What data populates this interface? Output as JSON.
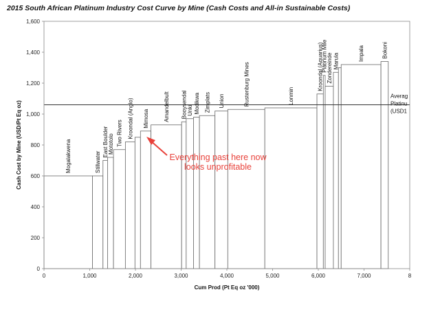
{
  "chart_data": {
    "type": "step",
    "title": "2015 South African Platinum Industry Cost Curve by Mine (Cash Costs and All-in Sustainable Costs)",
    "xlabel": "Cum Prod (Pt Eq oz '000)",
    "ylabel": "Cash Cost by Mine (USD/Pt Eq oz)",
    "xlim": [
      0,
      8000
    ],
    "ylim": [
      0,
      1600
    ],
    "x_ticks": [
      "0",
      "1,000",
      "2,000",
      "3,000",
      "4,000",
      "5,000",
      "6,000",
      "7,000",
      "8"
    ],
    "y_ticks": [
      "0",
      "200",
      "400",
      "600",
      "800",
      "1,000",
      "1,200",
      "1,400",
      "1,600"
    ],
    "grid": false,
    "bars": [
      {
        "label": "Mogalakwena",
        "x0": 0,
        "x1": 1060,
        "value": 600
      },
      {
        "label": "Stillwater",
        "x0": 1060,
        "x1": 1290,
        "value": 600
      },
      {
        "label": "East Boulder",
        "x0": 1290,
        "x1": 1390,
        "value": 700
      },
      {
        "label": "Mototolo",
        "x0": 1390,
        "x1": 1520,
        "value": 720
      },
      {
        "label": "Two Rivers",
        "x0": 1520,
        "x1": 1780,
        "value": 770
      },
      {
        "label": "Kroondal (Anglo)",
        "x0": 1780,
        "x1": 1990,
        "value": 820
      },
      {
        "label": "",
        "x0": 1990,
        "x1": 2110,
        "value": 850
      },
      {
        "label": "Mimosa",
        "x0": 2110,
        "x1": 2340,
        "value": 890
      },
      {
        "label": "Amandelbult",
        "x0": 2340,
        "x1": 3010,
        "value": 930
      },
      {
        "label": "Booysendal",
        "x0": 3010,
        "x1": 3110,
        "value": 950
      },
      {
        "label": "Unki",
        "x0": 3110,
        "x1": 3270,
        "value": 970
      },
      {
        "label": "Modikwa",
        "x0": 3270,
        "x1": 3400,
        "value": 980
      },
      {
        "label": "Zimplats",
        "x0": 3400,
        "x1": 3740,
        "value": 990
      },
      {
        "label": "Union",
        "x0": 3740,
        "x1": 4020,
        "value": 1020
      },
      {
        "label": "Rustenburg Mines",
        "x0": 4020,
        "x1": 4830,
        "value": 1030
      },
      {
        "label": "Lonmin",
        "x0": 4830,
        "x1": 5970,
        "value": 1040
      },
      {
        "label": "Kroondal (Aquarius)",
        "x0": 5970,
        "x1": 6110,
        "value": 1130
      },
      {
        "label": "Platinum Mile",
        "x0": 6110,
        "x1": 6150,
        "value": 1250
      },
      {
        "label": "Zondereinde",
        "x0": 6150,
        "x1": 6330,
        "value": 1180
      },
      {
        "label": "Marula",
        "x0": 6330,
        "x1": 6440,
        "value": 1270
      },
      {
        "label": "",
        "x0": 6440,
        "x1": 6500,
        "value": 1300
      },
      {
        "label": "Impala",
        "x0": 6500,
        "x1": 7370,
        "value": 1320
      },
      {
        "label": "Bokoni",
        "x0": 7370,
        "x1": 7530,
        "value": 1340
      }
    ],
    "reference_line": {
      "label": [
        "Averag",
        "Platinu",
        "(USD1"
      ],
      "value": 1060
    },
    "annotation": [
      "Everything past here now",
      "looks unprofitable"
    ]
  }
}
